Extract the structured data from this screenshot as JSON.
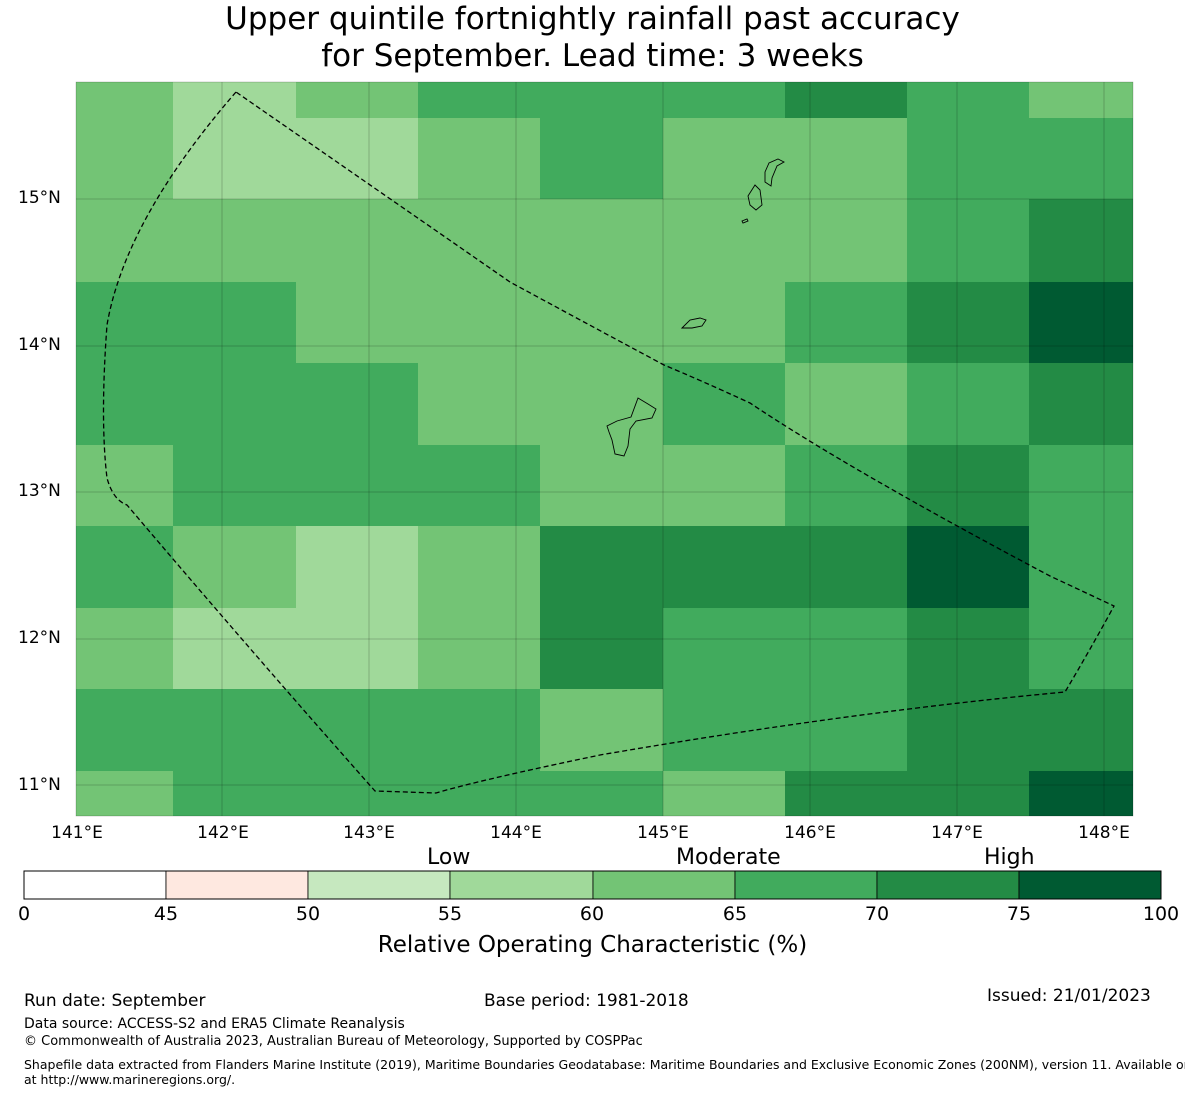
{
  "title": {
    "line1": "Upper quintile fortnightly rainfall past accuracy",
    "line2": "for September. Lead time: 3 weeks"
  },
  "map": {
    "lat_labels": [
      "15°N",
      "14°N",
      "13°N",
      "12°N",
      "11°N"
    ],
    "lon_labels": [
      "141°E",
      "142°E",
      "143°E",
      "144°E",
      "145°E",
      "146°E",
      "147°E",
      "148°E"
    ],
    "grid_roc_pct": [
      [
        62,
        57,
        62,
        67,
        67,
        67,
        72,
        67,
        62
      ],
      [
        62,
        57,
        57,
        62,
        67,
        62,
        62,
        67,
        67
      ],
      [
        62,
        62,
        62,
        62,
        62,
        62,
        62,
        67,
        72
      ],
      [
        67,
        67,
        62,
        62,
        62,
        62,
        67,
        72,
        77
      ],
      [
        67,
        67,
        67,
        62,
        62,
        67,
        62,
        67,
        72
      ],
      [
        62,
        67,
        67,
        67,
        62,
        62,
        67,
        72,
        67
      ],
      [
        67,
        62,
        57,
        62,
        72,
        72,
        72,
        77,
        67
      ],
      [
        62,
        57,
        57,
        62,
        72,
        67,
        67,
        72,
        67
      ],
      [
        67,
        67,
        67,
        67,
        62,
        67,
        67,
        72,
        72
      ],
      [
        62,
        67,
        67,
        67,
        67,
        62,
        72,
        72,
        77
      ]
    ]
  },
  "legend": {
    "categories": [
      "Low",
      "Moderate",
      "High"
    ],
    "ticks": [
      "0",
      "45",
      "50",
      "55",
      "60",
      "65",
      "70",
      "75",
      "100"
    ],
    "colors": [
      "#ffffff",
      "#fee8e0",
      "#c6e8bf",
      "#a0d99a",
      "#73c475",
      "#41ab5d",
      "#238b45",
      "#005a32"
    ],
    "label": "Relative Operating Characteristic (%)"
  },
  "footer": {
    "run_date": "Run date: September",
    "base_period": "Base period: 1981-2018",
    "issued": "Issued: 21/01/2023",
    "data_source": "Data source: ACCESS-S2 and ERA5 Climate Reanalysis",
    "copyright": "© Commonwealth of Australia 2023, Australian Bureau of Meteorology, Supported by COSPPac",
    "shapefile_line1": "Shapefile data extracted from Flanders Marine Institute (2019), Maritime Boundaries Geodatabase: Maritime Boundaries and Exclusive Economic Zones (200NM), version 11. Available online",
    "shapefile_line2": "at http://www.marineregions.org/."
  }
}
